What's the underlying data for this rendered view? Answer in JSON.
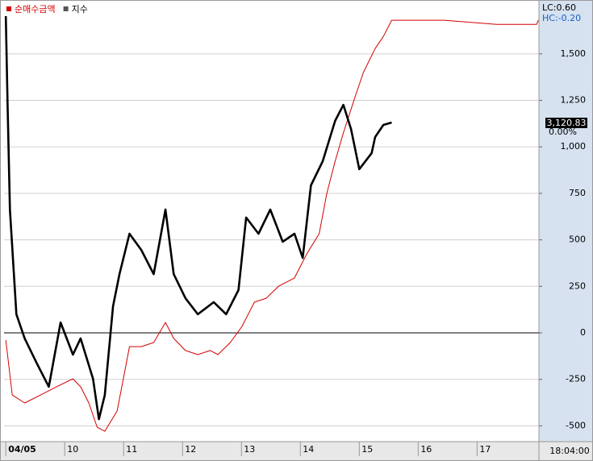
{
  "chart_data": {
    "type": "line",
    "series": [
      {
        "name": "순매수금액",
        "color": "#d40000",
        "x": [
          9.0,
          9.11,
          9.32,
          9.59,
          9.86,
          10.14,
          10.27,
          10.41,
          10.55,
          10.68,
          10.89,
          11.1,
          11.3,
          11.51,
          11.71,
          11.85,
          12.05,
          12.26,
          12.47,
          12.6,
          12.81,
          13.01,
          13.22,
          13.42,
          13.63,
          13.9,
          14.11,
          14.32,
          14.45,
          14.59,
          14.73,
          14.93,
          15.07,
          15.27,
          15.41,
          15.55,
          16.44,
          17.33,
          18.01,
          18.04
        ],
        "values": [
          -39,
          -334,
          -377,
          -334,
          -290,
          -247,
          -290,
          -377,
          -507,
          -529,
          -420,
          -74,
          -74,
          -52,
          56,
          -30,
          -95,
          -117,
          -95,
          -117,
          -52,
          35,
          165,
          186,
          251,
          295,
          425,
          533,
          750,
          923,
          1075,
          1270,
          1400,
          1529,
          1594,
          1681,
          1681,
          1659,
          1659,
          1681
        ]
      },
      {
        "name": "지수",
        "color": "#000000",
        "x": [
          9.0,
          9.03,
          9.07,
          9.18,
          9.32,
          9.52,
          9.73,
          9.93,
          10.14,
          10.27,
          10.48,
          10.58,
          10.68,
          10.82,
          10.93,
          11.1,
          11.3,
          11.51,
          11.71,
          11.85,
          12.05,
          12.26,
          12.53,
          12.74,
          12.95,
          13.08,
          13.29,
          13.49,
          13.7,
          13.9,
          14.04,
          14.18,
          14.38,
          14.59,
          14.73,
          14.86,
          15.0,
          15.21,
          15.27,
          15.41,
          15.55
        ],
        "values": [
          1703,
          1226,
          663,
          100,
          -30,
          -160,
          -290,
          56,
          -117,
          -30,
          -247,
          -464,
          -334,
          143,
          316,
          533,
          446,
          316,
          663,
          316,
          186,
          100,
          165,
          100,
          230,
          620,
          533,
          663,
          490,
          533,
          403,
          793,
          923,
          1140,
          1226,
          1096,
          880,
          966,
          1053,
          1118,
          1131
        ]
      }
    ],
    "xlim": [
      8.97,
      18.05
    ],
    "xticks": [
      {
        "value": 9,
        "label": "04/05"
      },
      10,
      11,
      12,
      13,
      14,
      15,
      16,
      17
    ],
    "ylim": [
      -572,
      1768
    ],
    "yticks": [
      {
        "value": 1500,
        "label": "1,500"
      },
      {
        "value": 1250,
        "label": "1,250"
      },
      {
        "value": 1000,
        "label": "1,000"
      },
      750,
      500,
      250,
      0,
      -250,
      -500
    ],
    "grid": true,
    "lc_label": "LC:0.60",
    "hc_label": "HC:-0.20",
    "last_value_label": "3,120.83",
    "last_change_label": "0.00%",
    "time_label": "18:04:00"
  }
}
